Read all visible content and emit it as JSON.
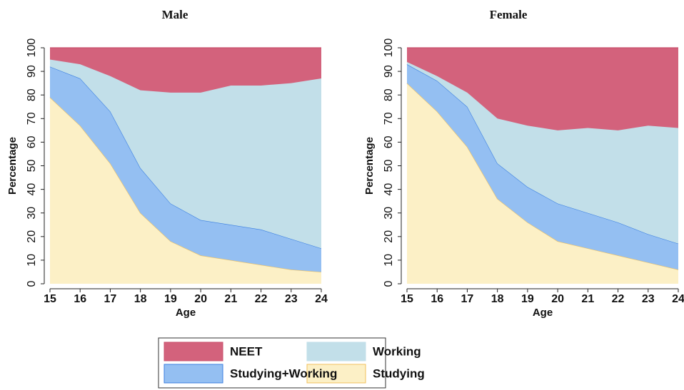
{
  "chart_data": [
    {
      "type": "stacked_area",
      "title": "Male",
      "xlabel": "Age",
      "ylabel": "Percentage",
      "x": [
        15,
        16,
        17,
        18,
        19,
        20,
        21,
        22,
        23,
        24
      ],
      "xlim": [
        15,
        24
      ],
      "xticks": [
        15,
        16,
        17,
        18,
        19,
        20,
        21,
        22,
        23,
        24
      ],
      "ylim": [
        0,
        100
      ],
      "yticks": [
        0,
        10,
        20,
        30,
        40,
        50,
        60,
        70,
        80,
        90,
        100
      ],
      "legend": "bottom",
      "series": [
        {
          "name": "Studying",
          "color": "#fcf0c6",
          "edgecolor": "#f2c15c",
          "values": [
            79,
            67,
            51,
            30,
            18,
            12,
            10,
            8,
            6,
            5
          ]
        },
        {
          "name": "Studying+Working",
          "color": "#94bff2",
          "edgecolor": "#3b7fe0",
          "values": [
            13,
            20,
            22,
            19,
            16,
            15,
            15,
            15,
            13,
            10
          ]
        },
        {
          "name": "Working",
          "color": "#c2dfe9",
          "edgecolor": "#c2dfe9",
          "values": [
            3,
            6,
            15,
            33,
            47,
            54,
            59,
            61,
            66,
            72
          ]
        },
        {
          "name": "NEET",
          "color": "#d3627c",
          "edgecolor": "#c8506c",
          "values": [
            5,
            7,
            12,
            18,
            19,
            19,
            16,
            16,
            15,
            13
          ]
        }
      ]
    },
    {
      "type": "stacked_area",
      "title": "Female",
      "xlabel": "Age",
      "ylabel": "Percentage",
      "x": [
        15,
        16,
        17,
        18,
        19,
        20,
        21,
        22,
        23,
        24
      ],
      "xlim": [
        15,
        24
      ],
      "xticks": [
        15,
        16,
        17,
        18,
        19,
        20,
        21,
        22,
        23,
        24
      ],
      "ylim": [
        0,
        100
      ],
      "yticks": [
        0,
        10,
        20,
        30,
        40,
        50,
        60,
        70,
        80,
        90,
        100
      ],
      "series": [
        {
          "name": "Studying",
          "color": "#fcf0c6",
          "edgecolor": "#f2c15c",
          "values": [
            85,
            73,
            58,
            36,
            26,
            18,
            15,
            12,
            9,
            6
          ]
        },
        {
          "name": "Studying+Working",
          "color": "#94bff2",
          "edgecolor": "#3b7fe0",
          "values": [
            8,
            13,
            17,
            15,
            15,
            16,
            15,
            14,
            12,
            11
          ]
        },
        {
          "name": "Working",
          "color": "#c2dfe9",
          "edgecolor": "#c2dfe9",
          "values": [
            1,
            2,
            6,
            19,
            26,
            31,
            36,
            39,
            46,
            49
          ]
        },
        {
          "name": "NEET",
          "color": "#d3627c",
          "edgecolor": "#c8506c",
          "values": [
            6,
            12,
            19,
            30,
            33,
            35,
            34,
            35,
            33,
            34
          ]
        }
      ]
    }
  ]
}
